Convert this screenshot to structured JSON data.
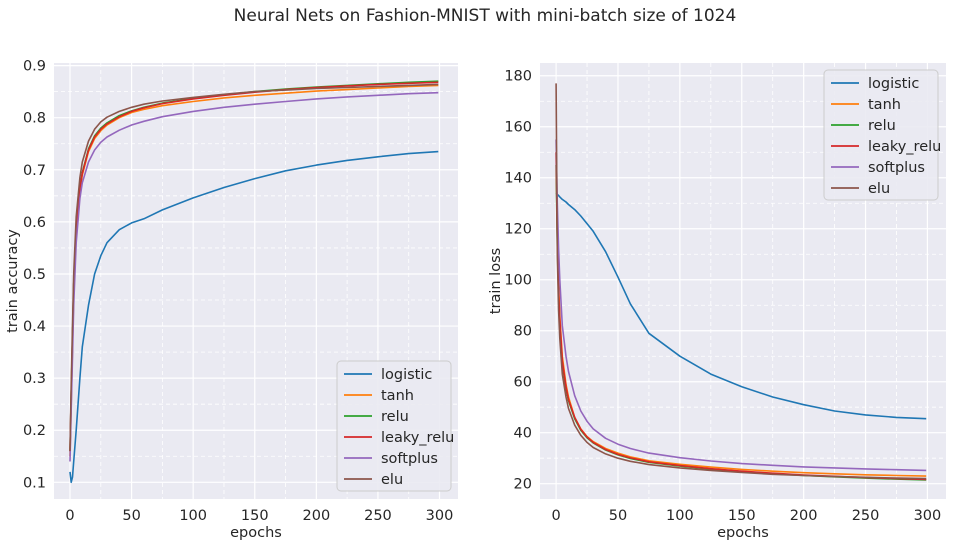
{
  "title": "Neural Nets on Fashion-MNIST with mini-batch size of 1024",
  "colors": {
    "logistic": "#1f77b4",
    "tanh": "#ff7f0e",
    "relu": "#2ca02c",
    "leaky_relu": "#d62728",
    "softplus": "#9467bd",
    "elu": "#8c564b",
    "axes_bg": "#eaeaf2",
    "grid": "#ffffff"
  },
  "chart_data": [
    {
      "type": "line",
      "title": "",
      "xlabel": "epochs",
      "ylabel": "train accuracy",
      "xlim": [
        -13,
        315
      ],
      "ylim": [
        0.068,
        0.905
      ],
      "xticks": [
        0,
        50,
        100,
        150,
        200,
        250,
        300
      ],
      "yticks": [
        0.1,
        0.2,
        0.3,
        0.4,
        0.5,
        0.6,
        0.7,
        0.8,
        0.9
      ],
      "ytick_labels": [
        "0.1",
        "0.2",
        "0.3",
        "0.4",
        "0.5",
        "0.6",
        "0.7",
        "0.8",
        "0.9"
      ],
      "grid": true,
      "legend_position": "lower-right",
      "x": [
        0,
        1,
        2,
        3,
        5,
        8,
        10,
        15,
        20,
        25,
        30,
        40,
        50,
        60,
        75,
        100,
        125,
        150,
        175,
        200,
        225,
        250,
        275,
        299
      ],
      "series": [
        {
          "name": "logistic",
          "color_key": "logistic",
          "values": [
            0.12,
            0.1,
            0.11,
            0.14,
            0.2,
            0.3,
            0.36,
            0.44,
            0.5,
            0.535,
            0.56,
            0.585,
            0.598,
            0.606,
            0.623,
            0.646,
            0.666,
            0.683,
            0.698,
            0.709,
            0.718,
            0.725,
            0.731,
            0.735
          ]
        },
        {
          "name": "tanh",
          "color_key": "tanh",
          "values": [
            0.15,
            0.25,
            0.36,
            0.46,
            0.58,
            0.66,
            0.69,
            0.735,
            0.76,
            0.775,
            0.786,
            0.8,
            0.81,
            0.816,
            0.823,
            0.831,
            0.838,
            0.843,
            0.847,
            0.851,
            0.854,
            0.857,
            0.86,
            0.862
          ]
        },
        {
          "name": "relu",
          "color_key": "relu",
          "values": [
            0.16,
            0.27,
            0.38,
            0.48,
            0.59,
            0.665,
            0.695,
            0.74,
            0.765,
            0.78,
            0.79,
            0.804,
            0.813,
            0.82,
            0.828,
            0.837,
            0.844,
            0.85,
            0.855,
            0.859,
            0.862,
            0.865,
            0.868,
            0.87
          ]
        },
        {
          "name": "leaky_relu",
          "color_key": "leaky_relu",
          "values": [
            0.16,
            0.27,
            0.38,
            0.48,
            0.59,
            0.665,
            0.693,
            0.738,
            0.763,
            0.778,
            0.788,
            0.802,
            0.812,
            0.819,
            0.827,
            0.836,
            0.843,
            0.849,
            0.854,
            0.858,
            0.861,
            0.864,
            0.866,
            0.868
          ]
        },
        {
          "name": "softplus",
          "color_key": "softplus",
          "values": [
            0.14,
            0.24,
            0.34,
            0.44,
            0.56,
            0.645,
            0.675,
            0.715,
            0.738,
            0.753,
            0.763,
            0.776,
            0.786,
            0.793,
            0.802,
            0.812,
            0.82,
            0.826,
            0.831,
            0.836,
            0.84,
            0.843,
            0.846,
            0.848
          ]
        },
        {
          "name": "elu",
          "color_key": "elu",
          "values": [
            0.16,
            0.29,
            0.4,
            0.5,
            0.61,
            0.685,
            0.715,
            0.755,
            0.778,
            0.792,
            0.801,
            0.812,
            0.82,
            0.826,
            0.832,
            0.839,
            0.845,
            0.85,
            0.853,
            0.856,
            0.858,
            0.86,
            0.862,
            0.864
          ]
        }
      ]
    },
    {
      "type": "line",
      "title": "",
      "xlabel": "epochs",
      "ylabel": "train loss",
      "xlim": [
        -13,
        315
      ],
      "ylim": [
        14,
        185
      ],
      "xticks": [
        0,
        50,
        100,
        150,
        200,
        250,
        300
      ],
      "yticks": [
        20,
        40,
        60,
        80,
        100,
        120,
        140,
        160,
        180
      ],
      "ytick_labels": [
        "20",
        "40",
        "60",
        "80",
        "100",
        "120",
        "140",
        "160",
        "180"
      ],
      "grid": true,
      "legend_position": "upper-right",
      "x": [
        0,
        1,
        2,
        3,
        5,
        8,
        10,
        15,
        20,
        25,
        30,
        40,
        50,
        60,
        75,
        100,
        125,
        150,
        175,
        200,
        225,
        250,
        275,
        299
      ],
      "series": [
        {
          "name": "logistic",
          "color_key": "logistic",
          "values": [
            134,
            133.5,
            133,
            132.5,
            131.5,
            130.5,
            129.5,
            127.5,
            125,
            122,
            119,
            111,
            101,
            90.5,
            79,
            70,
            63,
            58,
            54,
            51,
            48.5,
            47,
            46,
            45.5
          ]
        },
        {
          "name": "tanh",
          "color_key": "tanh",
          "values": [
            150,
            118,
            98,
            86,
            70,
            59,
            54,
            46,
            41.5,
            38.5,
            36.5,
            33.8,
            32.0,
            30.5,
            29.0,
            27.6,
            26.5,
            25.6,
            24.9,
            24.3,
            23.9,
            23.5,
            23.2,
            23.0
          ]
        },
        {
          "name": "relu",
          "color_key": "relu",
          "values": [
            145,
            113,
            93,
            82,
            67,
            57,
            52.5,
            45.5,
            41,
            38,
            36,
            33.2,
            31.3,
            29.9,
            28.4,
            26.9,
            25.7,
            24.7,
            23.9,
            23.2,
            22.7,
            22.2,
            21.8,
            21.5
          ]
        },
        {
          "name": "leaky_relu",
          "color_key": "leaky_relu",
          "values": [
            150,
            116,
            95,
            84,
            68,
            58,
            53,
            46,
            41.3,
            38.3,
            36.2,
            33.4,
            31.5,
            30.1,
            28.6,
            27.1,
            25.9,
            24.9,
            24.1,
            23.4,
            22.9,
            22.4,
            22.0,
            21.7
          ]
        },
        {
          "name": "softplus",
          "color_key": "softplus",
          "values": [
            155,
            130,
            112,
            100,
            82,
            70,
            64,
            54.5,
            48.5,
            44.5,
            41.5,
            37.8,
            35.5,
            33.8,
            32.0,
            30.2,
            28.9,
            27.9,
            27.2,
            26.6,
            26.2,
            25.8,
            25.5,
            25.2
          ]
        },
        {
          "name": "elu",
          "color_key": "elu",
          "values": [
            177,
            110,
            88,
            77,
            63,
            54,
            49.5,
            43,
            39,
            36.2,
            34.2,
            31.7,
            30.0,
            28.8,
            27.5,
            26.2,
            25.2,
            24.4,
            23.7,
            23.2,
            22.8,
            22.5,
            22.2,
            22.0
          ]
        }
      ]
    }
  ]
}
